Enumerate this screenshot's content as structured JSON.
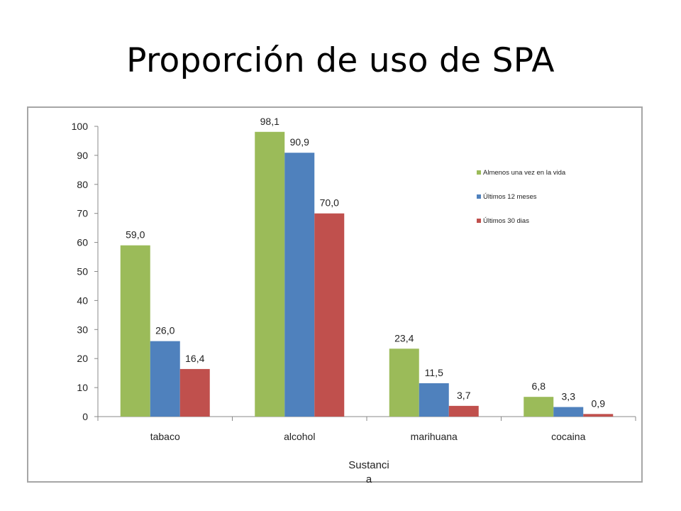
{
  "slide": {
    "title": "Proporción de uso de SPA"
  },
  "chart_data": {
    "type": "bar",
    "categories": [
      "tabaco",
      "alcohol",
      "marihuana",
      "cocaina"
    ],
    "series": [
      {
        "name": "Almenos una vez en la vida",
        "color": "#9bbb59",
        "values": [
          59.0,
          98.1,
          23.4,
          6.8
        ],
        "labels": [
          "59,0",
          "98,1",
          "23,4",
          "6,8"
        ]
      },
      {
        "name": "Últimos 12 meses",
        "color": "#4f81bd",
        "values": [
          26.0,
          90.9,
          11.5,
          3.3
        ],
        "labels": [
          "26,0",
          "90,9",
          "11,5",
          "3,3"
        ]
      },
      {
        "name": "Últimos 30 dias",
        "color": "#c0504d",
        "values": [
          16.4,
          70.0,
          3.7,
          0.9
        ],
        "labels": [
          "16,4",
          "70,0",
          "3,7",
          "0,9"
        ]
      }
    ],
    "ylim": [
      0,
      100
    ],
    "yticks": [
      "0",
      "10",
      "20",
      "30",
      "40",
      "50",
      "60",
      "70",
      "80",
      "90",
      "100"
    ],
    "xlabel_lines": [
      "Sustanci",
      "a"
    ],
    "ylabel": "",
    "legend_position": "top-right",
    "grid": false
  }
}
